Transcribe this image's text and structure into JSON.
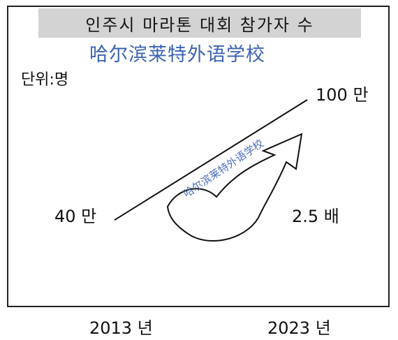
{
  "header": {
    "title": "인주시 마라톤 대회 참가자 수",
    "watermark": "哈尔滨莱特外语学校"
  },
  "unit_label": "단위:명",
  "chart_data": {
    "type": "line",
    "title": "인주시 마라톤 대회 참가자 수",
    "unit": "단위:명",
    "categories": [
      "2013 년",
      "2023 년"
    ],
    "series": [
      {
        "values": [
          400000,
          1000000
        ]
      }
    ],
    "data_labels": [
      "40 만",
      "100 만"
    ],
    "annotation": "2.5 배",
    "grid": false
  },
  "labels": {
    "start": "40 만",
    "end": "100 만",
    "multiplier": "2.5 배",
    "x1": "2013 년",
    "x2": "2023 년"
  },
  "watermark_diag": "哈尔滨莱特外语学校",
  "colors": {
    "title_band": "#d3d3d3",
    "watermark": "#3c62b4",
    "line": "#111111"
  }
}
